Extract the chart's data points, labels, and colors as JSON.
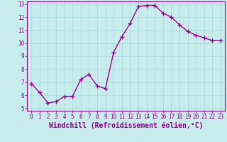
{
  "x": [
    0,
    1,
    2,
    3,
    4,
    5,
    6,
    7,
    8,
    9,
    10,
    11,
    12,
    13,
    14,
    15,
    16,
    17,
    18,
    19,
    20,
    21,
    22,
    23
  ],
  "y": [
    6.9,
    6.2,
    5.4,
    5.5,
    5.9,
    5.9,
    7.2,
    7.6,
    6.7,
    6.5,
    9.3,
    10.5,
    11.5,
    12.8,
    12.9,
    12.9,
    12.3,
    12.0,
    11.4,
    10.9,
    10.6,
    10.4,
    10.2,
    10.2
  ],
  "line_color": "#990099",
  "marker": "+",
  "marker_size": 4,
  "marker_linewidth": 1.0,
  "xlabel": "Windchill (Refroidissement éolien,°C)",
  "xlabel_fontsize": 7,
  "ylim": [
    4.8,
    13.2
  ],
  "xlim": [
    -0.5,
    23.5
  ],
  "yticks": [
    5,
    6,
    7,
    8,
    9,
    10,
    11,
    12,
    13
  ],
  "xticks": [
    0,
    1,
    2,
    3,
    4,
    5,
    6,
    7,
    8,
    9,
    10,
    11,
    12,
    13,
    14,
    15,
    16,
    17,
    18,
    19,
    20,
    21,
    22,
    23
  ],
  "grid_color": "#a8dada",
  "bg_color": "#c8ecec",
  "tick_fontsize": 5.5,
  "line_width": 1.0,
  "spine_color": "#880088",
  "label_color": "#880088"
}
